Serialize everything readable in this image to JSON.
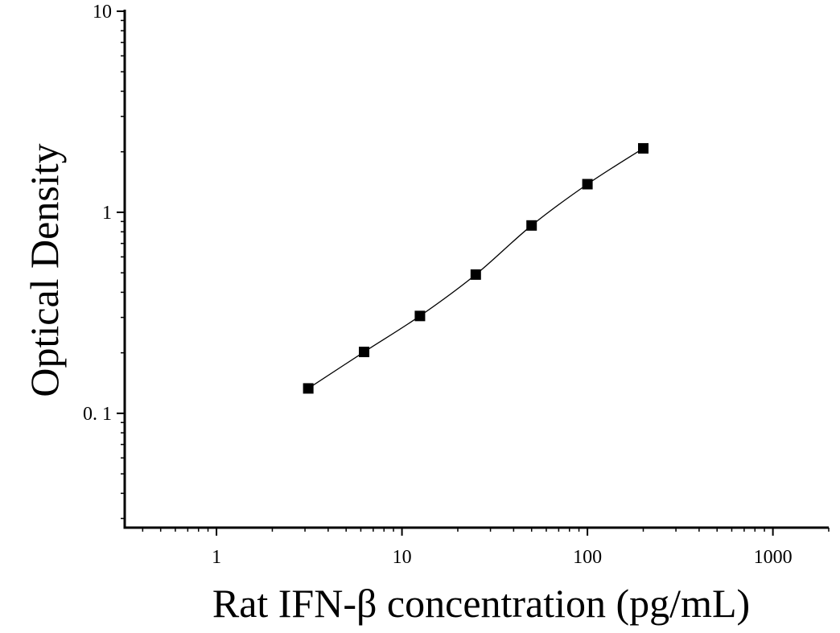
{
  "chart_data": {
    "type": "scatter",
    "xlabel": "Rat IFN-β concentration (pg/mL)",
    "ylabel": "Optical Density",
    "xscale": "log",
    "yscale": "log",
    "xlim": [
      0.32,
      2000
    ],
    "ylim": [
      0.027,
      10
    ],
    "xticks": [
      1,
      10,
      100,
      1000
    ],
    "xtick_labels": [
      "1",
      "10",
      "100",
      "1000"
    ],
    "yticks": [
      0.1,
      1,
      10
    ],
    "ytick_labels": [
      "0. 1",
      "1",
      "10"
    ],
    "grid": false,
    "legend": "none",
    "marker": "square",
    "marker_color": "#000000",
    "fit_line": "smooth curve through points",
    "series": [
      {
        "x": [
          3.125,
          6.25,
          12.5,
          25,
          50,
          100,
          200
        ],
        "y": [
          0.133,
          0.202,
          0.305,
          0.49,
          0.86,
          1.38,
          2.08
        ]
      }
    ]
  }
}
